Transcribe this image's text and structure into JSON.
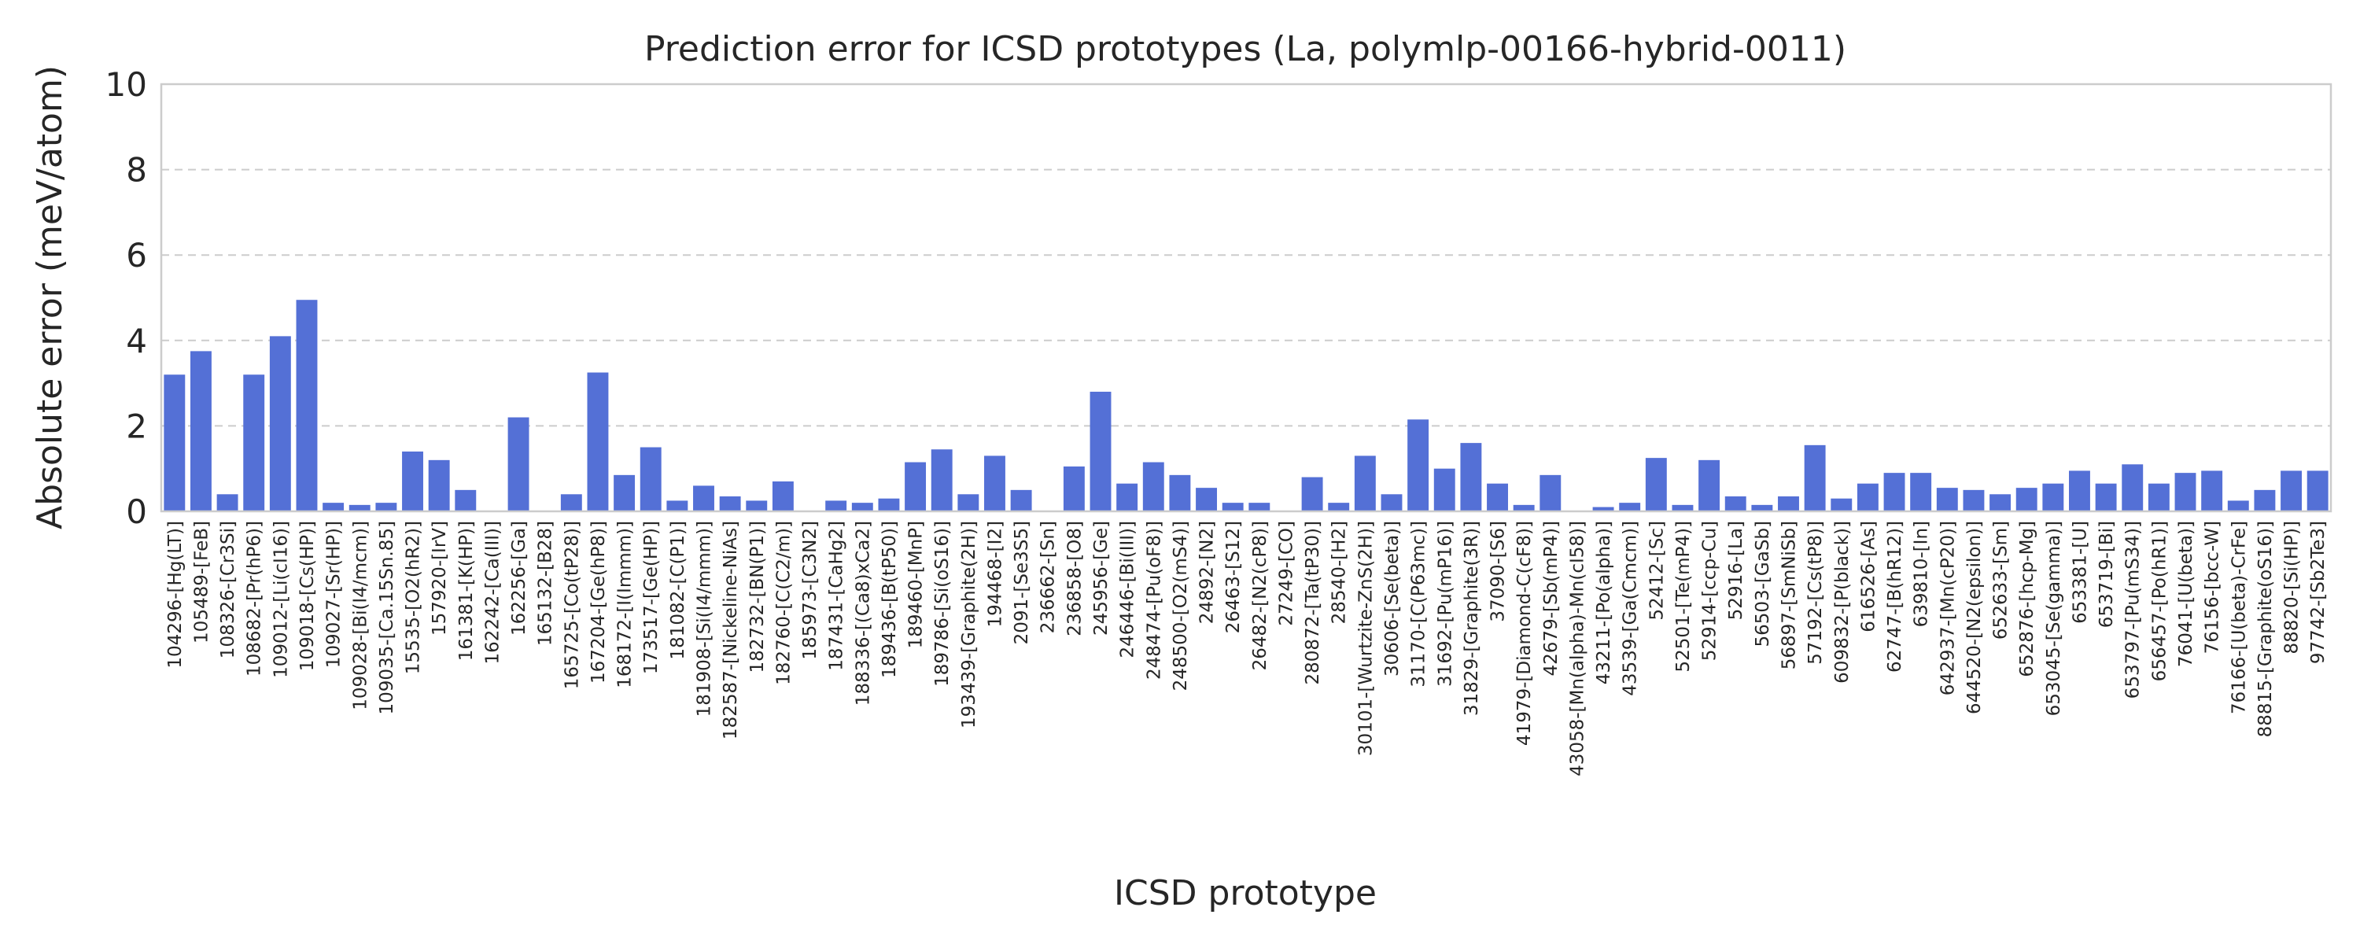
{
  "chart_data": {
    "type": "bar",
    "title": "Prediction error for ICSD prototypes (La, polymlp-00166-hybrid-0011)",
    "xlabel": "ICSD prototype",
    "ylabel": "Absolute error (meV/atom)",
    "ylim": [
      0,
      10
    ],
    "yticks": [
      0,
      2,
      4,
      6,
      8,
      10
    ],
    "grid": true,
    "bar_color": "#5470d6",
    "categories": [
      "104296-[Hg(LT)]",
      "105489-[FeB]",
      "108326-[Cr3Si]",
      "108682-[Pr(hP6)]",
      "109012-[Li(cI16)]",
      "109018-[Cs(HP)]",
      "109027-[Sr(HP)]",
      "109028-[Bi(I4/mcm)]",
      "109035-[Ca.15Sn.85]",
      "15535-[O2(hR2)]",
      "157920-[IrV]",
      "161381-[K(HP)]",
      "162242-[Ca(III)]",
      "162256-[Ga]",
      "165132-[B28]",
      "165725-[Co(tP28)]",
      "167204-[Ge(hP8)]",
      "168172-[I(Immm)]",
      "173517-[Ge(HP)]",
      "181082-[C(P1)]",
      "181908-[Si(I4/mmm)]",
      "182587-[Nickeline-NiAs]",
      "182732-[BN(P1)]",
      "182760-[C(C2/m)]",
      "185973-[C3N2]",
      "187431-[CaHg2]",
      "188336-[(Ca8)xCa2]",
      "189436-[B(tP50)]",
      "189460-[MnP]",
      "189786-[Si(oS16)]",
      "193439-[Graphite(2H)]",
      "194468-[I2]",
      "2091-[Se3S5]",
      "236662-[Sn]",
      "236858-[O8]",
      "245956-[Ge]",
      "246446-[Bi(III)]",
      "248474-[Pu(oF8)]",
      "248500-[O2(mS4)]",
      "24892-[N2]",
      "26463-[S12]",
      "26482-[N2(cP8)]",
      "27249-[CO]",
      "280872-[Ta(tP30)]",
      "28540-[H2]",
      "30101-[Wurtzite-ZnS(2H)]",
      "30606-[Se(beta)]",
      "31170-[C(P63mc)]",
      "31692-[Pu(mP16)]",
      "31829-[Graphite(3R)]",
      "37090-[S6]",
      "41979-[Diamond-C(cF8)]",
      "42679-[Sb(mP4)]",
      "43058-[Mn(alpha)-Mn(cI58)]",
      "43211-[Po(alpha)]",
      "43539-[Ga(Cmcm)]",
      "52412-[Sc]",
      "52501-[Te(mP4)]",
      "52914-[ccp-Cu]",
      "52916-[La]",
      "56503-[GaSb]",
      "56897-[SmNiSb]",
      "57192-[Cs(tP8)]",
      "609832-[P(black)]",
      "616526-[As]",
      "62747-[B(hR12)]",
      "639810-[In]",
      "642937-[Mn(cP20)]",
      "644520-[N2(epsilon)]",
      "652633-[Sm]",
      "652876-[hcp-Mg]",
      "653045-[Se(gamma)]",
      "653381-[U]",
      "653719-[Bi]",
      "653797-[Pu(mS34)]",
      "656457-[Po(hR1)]",
      "76041-[U(beta)]",
      "76156-[bcc-W]",
      "76166-[U(beta)-CrFe]",
      "88815-[Graphite(oS16)]",
      "88820-[Si(HP)]",
      "97742-[Sb2Te3]"
    ],
    "values": [
      3.2,
      3.75,
      0.4,
      3.2,
      4.1,
      4.95,
      0.2,
      0.15,
      0.2,
      1.4,
      1.2,
      0.5,
      0.0,
      2.2,
      0.0,
      0.4,
      3.25,
      0.85,
      1.5,
      0.25,
      0.6,
      0.35,
      0.25,
      0.7,
      0.0,
      0.25,
      0.2,
      0.3,
      1.15,
      1.45,
      0.4,
      1.3,
      0.5,
      0.0,
      1.05,
      2.8,
      0.65,
      1.15,
      0.85,
      0.55,
      0.2,
      0.2,
      0.0,
      0.8,
      0.2,
      1.3,
      0.4,
      2.15,
      1.0,
      1.6,
      0.65,
      0.15,
      0.85,
      0.0,
      0.1,
      0.2,
      1.25,
      0.15,
      1.2,
      0.35,
      0.15,
      0.35,
      1.55,
      0.3,
      0.65,
      0.9,
      0.9,
      0.55,
      0.5,
      0.4,
      0.55,
      0.65,
      0.95,
      0.65,
      1.1,
      0.65,
      0.9,
      0.95,
      0.25,
      0.5,
      0.95,
      0.95
    ]
  }
}
